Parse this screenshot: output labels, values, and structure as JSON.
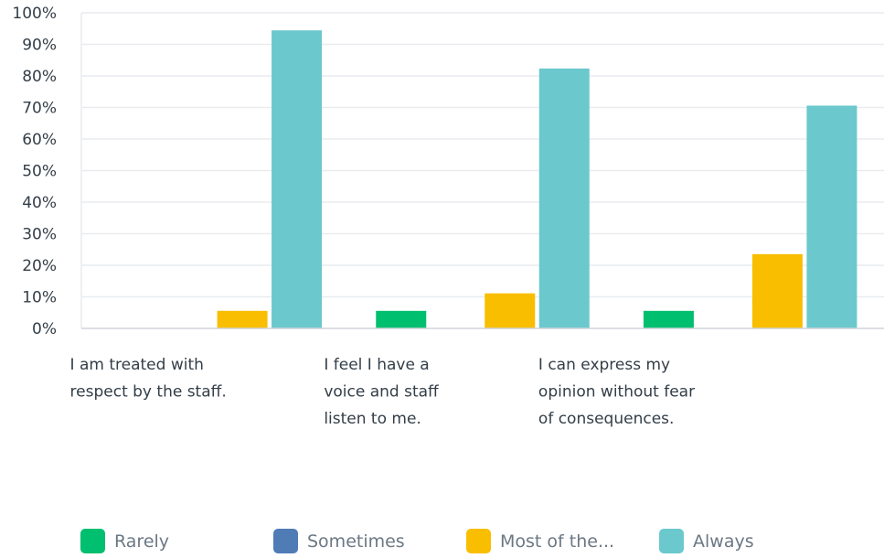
{
  "chart_data": {
    "type": "bar",
    "categories": [
      [
        "I am treated with",
        "respect by the staff."
      ],
      [
        "I feel I have a",
        "voice and staff",
        "listen to me."
      ],
      [
        "I can express my",
        "opinion without fear",
        "of consequences."
      ]
    ],
    "series": [
      {
        "name": "Rarely",
        "color": "#00bf6f",
        "values": [
          0,
          5.56,
          5.56
        ]
      },
      {
        "name": "Sometimes",
        "color": "#507cb6",
        "values": [
          0,
          0,
          0
        ]
      },
      {
        "name": "Most of the...",
        "color": "#f9be00",
        "values": [
          5.56,
          11.11,
          23.53
        ]
      },
      {
        "name": "Always",
        "color": "#6bc8cd",
        "values": [
          94.44,
          82.35,
          70.59
        ]
      }
    ],
    "y_ticks": [
      "0%",
      "10%",
      "20%",
      "30%",
      "40%",
      "50%",
      "60%",
      "70%",
      "80%",
      "90%",
      "100%"
    ],
    "ylim": [
      0,
      100
    ],
    "grid": true,
    "legend_position": "bottom"
  },
  "legend": {
    "items": [
      {
        "label": "Rarely",
        "color": "#00bf6f"
      },
      {
        "label": "Sometimes",
        "color": "#507cb6"
      },
      {
        "label": "Most of the...",
        "color": "#f9be00"
      },
      {
        "label": "Always",
        "color": "#6bc8cd"
      }
    ]
  }
}
